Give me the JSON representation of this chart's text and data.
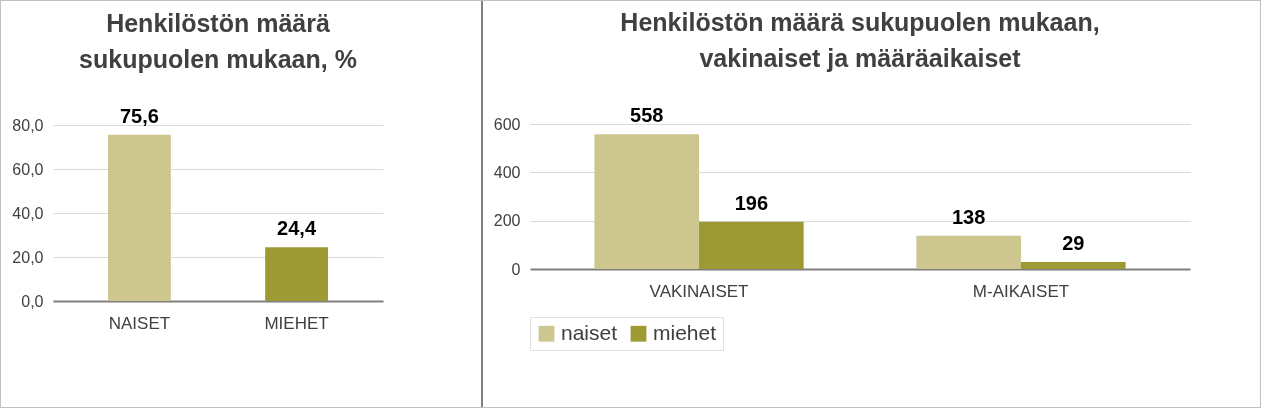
{
  "chart_data": [
    {
      "type": "bar",
      "title": "Henkilöstön määrä sukupuolen mukaan, %",
      "categories": [
        "NAISET",
        "MIEHET"
      ],
      "values": [
        75.6,
        24.4
      ],
      "colors": [
        "#cdc78f",
        "#9e9a33"
      ],
      "value_labels": [
        "75,6",
        "24,4"
      ],
      "ylim": [
        0,
        80
      ],
      "yticks": [
        {
          "value": 0,
          "label": "0,0"
        },
        {
          "value": 20,
          "label": "20,0"
        },
        {
          "value": 40,
          "label": "40,0"
        },
        {
          "value": 60,
          "label": "60,0"
        },
        {
          "value": 80,
          "label": "80,0"
        }
      ],
      "grid": "y"
    },
    {
      "type": "bar",
      "title": "Henkilöstön määrä sukupuolen mukaan, vakinaiset ja määräaikaiset",
      "categories": [
        "VAKINAISET",
        "M-AIKAISET"
      ],
      "series": [
        {
          "name": "naiset",
          "color": "#cdc78f",
          "values": [
            558,
            138
          ]
        },
        {
          "name": "miehet",
          "color": "#9e9a33",
          "values": [
            196,
            29
          ]
        }
      ],
      "data_labels": true,
      "ylim": [
        0,
        600
      ],
      "yticks": [
        0,
        200,
        400,
        600
      ],
      "grid": "y",
      "legend": "bottom"
    }
  ]
}
